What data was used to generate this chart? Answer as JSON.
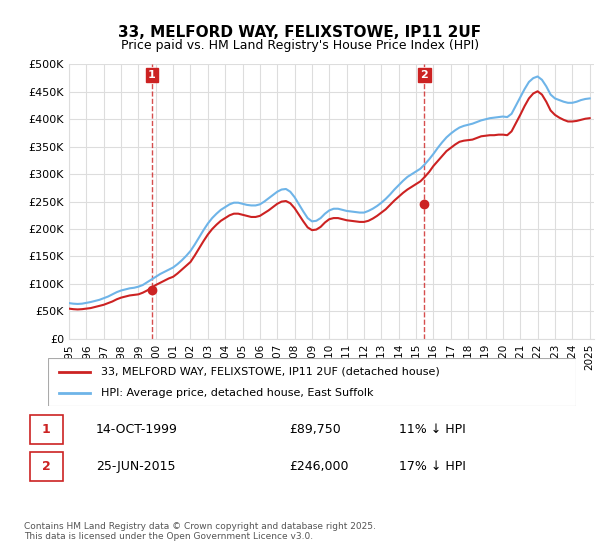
{
  "title": "33, MELFORD WAY, FELIXSTOWE, IP11 2UF",
  "subtitle": "Price paid vs. HM Land Registry's House Price Index (HPI)",
  "ylabel": "",
  "ylim": [
    0,
    500000
  ],
  "yticks": [
    0,
    50000,
    100000,
    150000,
    200000,
    250000,
    300000,
    350000,
    400000,
    450000,
    500000
  ],
  "ytick_labels": [
    "£0",
    "£50K",
    "£100K",
    "£150K",
    "£200K",
    "£250K",
    "£300K",
    "£350K",
    "£400K",
    "£450K",
    "£500K"
  ],
  "hpi_color": "#6EB4E8",
  "price_color": "#CC2222",
  "marker_color": "#CC2222",
  "annotation_box_color": "#CC2222",
  "background_color": "#FFFFFF",
  "grid_color": "#DDDDDD",
  "legend_label_price": "33, MELFORD WAY, FELIXSTOWE, IP11 2UF (detached house)",
  "legend_label_hpi": "HPI: Average price, detached house, East Suffolk",
  "sale1_label": "1",
  "sale1_date": "14-OCT-1999",
  "sale1_price": "£89,750",
  "sale1_hpi": "11% ↓ HPI",
  "sale2_label": "2",
  "sale2_date": "25-JUN-2015",
  "sale2_price": "£246,000",
  "sale2_hpi": "17% ↓ HPI",
  "footnote": "Contains HM Land Registry data © Crown copyright and database right 2025.\nThis data is licensed under the Open Government Licence v3.0.",
  "hpi_data": {
    "years": [
      1995.0,
      1995.25,
      1995.5,
      1995.75,
      1996.0,
      1996.25,
      1996.5,
      1996.75,
      1997.0,
      1997.25,
      1997.5,
      1997.75,
      1998.0,
      1998.25,
      1998.5,
      1998.75,
      1999.0,
      1999.25,
      1999.5,
      1999.75,
      2000.0,
      2000.25,
      2000.5,
      2000.75,
      2001.0,
      2001.25,
      2001.5,
      2001.75,
      2002.0,
      2002.25,
      2002.5,
      2002.75,
      2003.0,
      2003.25,
      2003.5,
      2003.75,
      2004.0,
      2004.25,
      2004.5,
      2004.75,
      2005.0,
      2005.25,
      2005.5,
      2005.75,
      2006.0,
      2006.25,
      2006.5,
      2006.75,
      2007.0,
      2007.25,
      2007.5,
      2007.75,
      2008.0,
      2008.25,
      2008.5,
      2008.75,
      2009.0,
      2009.25,
      2009.5,
      2009.75,
      2010.0,
      2010.25,
      2010.5,
      2010.75,
      2011.0,
      2011.25,
      2011.5,
      2011.75,
      2012.0,
      2012.25,
      2012.5,
      2012.75,
      2013.0,
      2013.25,
      2013.5,
      2013.75,
      2014.0,
      2014.25,
      2014.5,
      2014.75,
      2015.0,
      2015.25,
      2015.5,
      2015.75,
      2016.0,
      2016.25,
      2016.5,
      2016.75,
      2017.0,
      2017.25,
      2017.5,
      2017.75,
      2018.0,
      2018.25,
      2018.5,
      2018.75,
      2019.0,
      2019.25,
      2019.5,
      2019.75,
      2020.0,
      2020.25,
      2020.5,
      2020.75,
      2021.0,
      2021.25,
      2021.5,
      2021.75,
      2022.0,
      2022.25,
      2022.5,
      2022.75,
      2023.0,
      2023.25,
      2023.5,
      2023.75,
      2024.0,
      2024.25,
      2024.5,
      2024.75,
      2025.0
    ],
    "values": [
      65000,
      64000,
      63500,
      64000,
      65500,
      67000,
      69000,
      71000,
      74000,
      77000,
      81000,
      85000,
      88000,
      90000,
      92000,
      93000,
      95000,
      98000,
      103000,
      108000,
      113000,
      118000,
      122000,
      126000,
      130000,
      136000,
      143000,
      151000,
      160000,
      172000,
      185000,
      198000,
      210000,
      220000,
      228000,
      235000,
      240000,
      245000,
      248000,
      248000,
      246000,
      244000,
      243000,
      243000,
      245000,
      250000,
      256000,
      262000,
      268000,
      272000,
      273000,
      268000,
      258000,
      245000,
      232000,
      220000,
      214000,
      215000,
      220000,
      228000,
      234000,
      237000,
      237000,
      235000,
      233000,
      232000,
      231000,
      230000,
      230000,
      233000,
      237000,
      242000,
      248000,
      255000,
      263000,
      272000,
      280000,
      288000,
      295000,
      300000,
      305000,
      310000,
      318000,
      327000,
      337000,
      348000,
      358000,
      367000,
      374000,
      380000,
      385000,
      388000,
      390000,
      392000,
      395000,
      398000,
      400000,
      402000,
      403000,
      404000,
      405000,
      404000,
      410000,
      425000,
      440000,
      455000,
      468000,
      475000,
      478000,
      472000,
      460000,
      445000,
      438000,
      435000,
      432000,
      430000,
      430000,
      432000,
      435000,
      437000,
      438000
    ]
  },
  "price_data": {
    "years": [
      1995.0,
      1995.25,
      1995.5,
      1995.75,
      1996.0,
      1996.25,
      1996.5,
      1996.75,
      1997.0,
      1997.25,
      1997.5,
      1997.75,
      1998.0,
      1998.25,
      1998.5,
      1998.75,
      1999.0,
      1999.25,
      1999.5,
      1999.75,
      2000.0,
      2000.25,
      2000.5,
      2000.75,
      2001.0,
      2001.25,
      2001.5,
      2001.75,
      2002.0,
      2002.25,
      2002.5,
      2002.75,
      2003.0,
      2003.25,
      2003.5,
      2003.75,
      2004.0,
      2004.25,
      2004.5,
      2004.75,
      2005.0,
      2005.25,
      2005.5,
      2005.75,
      2006.0,
      2006.25,
      2006.5,
      2006.75,
      2007.0,
      2007.25,
      2007.5,
      2007.75,
      2008.0,
      2008.25,
      2008.5,
      2008.75,
      2009.0,
      2009.25,
      2009.5,
      2009.75,
      2010.0,
      2010.25,
      2010.5,
      2010.75,
      2011.0,
      2011.25,
      2011.5,
      2011.75,
      2012.0,
      2012.25,
      2012.5,
      2012.75,
      2013.0,
      2013.25,
      2013.5,
      2013.75,
      2014.0,
      2014.25,
      2014.5,
      2014.75,
      2015.0,
      2015.25,
      2015.5,
      2015.75,
      2016.0,
      2016.25,
      2016.5,
      2016.75,
      2017.0,
      2017.25,
      2017.5,
      2017.75,
      2018.0,
      2018.25,
      2018.5,
      2018.75,
      2019.0,
      2019.25,
      2019.5,
      2019.75,
      2020.0,
      2020.25,
      2020.5,
      2020.75,
      2021.0,
      2021.25,
      2021.5,
      2021.75,
      2022.0,
      2022.25,
      2022.5,
      2022.75,
      2023.0,
      2023.25,
      2023.5,
      2023.75,
      2024.0,
      2024.25,
      2024.5,
      2024.75,
      2025.0
    ],
    "values": [
      55000,
      54000,
      53500,
      54000,
      55000,
      56000,
      58000,
      60000,
      62000,
      65000,
      68000,
      72000,
      75000,
      77000,
      79000,
      80000,
      81000,
      84000,
      88000,
      93000,
      98000,
      102000,
      106000,
      110000,
      113000,
      119000,
      126000,
      133000,
      140000,
      152000,
      165000,
      178000,
      190000,
      200000,
      208000,
      215000,
      220000,
      225000,
      228000,
      228000,
      226000,
      224000,
      222000,
      222000,
      224000,
      229000,
      234000,
      240000,
      246000,
      250000,
      251000,
      247000,
      238000,
      226000,
      214000,
      203000,
      198000,
      199000,
      204000,
      212000,
      218000,
      220000,
      220000,
      218000,
      216000,
      215000,
      214000,
      213000,
      213000,
      215000,
      219000,
      224000,
      230000,
      236000,
      244000,
      252000,
      259000,
      266000,
      272000,
      277000,
      282000,
      287000,
      295000,
      304000,
      315000,
      324000,
      333000,
      342000,
      348000,
      354000,
      359000,
      361000,
      362000,
      363000,
      366000,
      369000,
      370000,
      371000,
      371000,
      372000,
      372000,
      371000,
      378000,
      393000,
      408000,
      424000,
      438000,
      447000,
      451000,
      445000,
      432000,
      416000,
      408000,
      403000,
      399000,
      396000,
      396000,
      397000,
      399000,
      401000,
      402000
    ]
  },
  "sale1_x": 1999.78,
  "sale1_y": 89750,
  "sale2_x": 2015.48,
  "sale2_y": 246000,
  "vline1_x": 1999.78,
  "vline2_x": 2015.48,
  "xlim": [
    1995.0,
    2025.25
  ],
  "xtick_years": [
    1995,
    1996,
    1997,
    1998,
    1999,
    2000,
    2001,
    2002,
    2003,
    2004,
    2005,
    2006,
    2007,
    2008,
    2009,
    2010,
    2011,
    2012,
    2013,
    2014,
    2015,
    2016,
    2017,
    2018,
    2019,
    2020,
    2021,
    2022,
    2023,
    2024,
    2025
  ]
}
